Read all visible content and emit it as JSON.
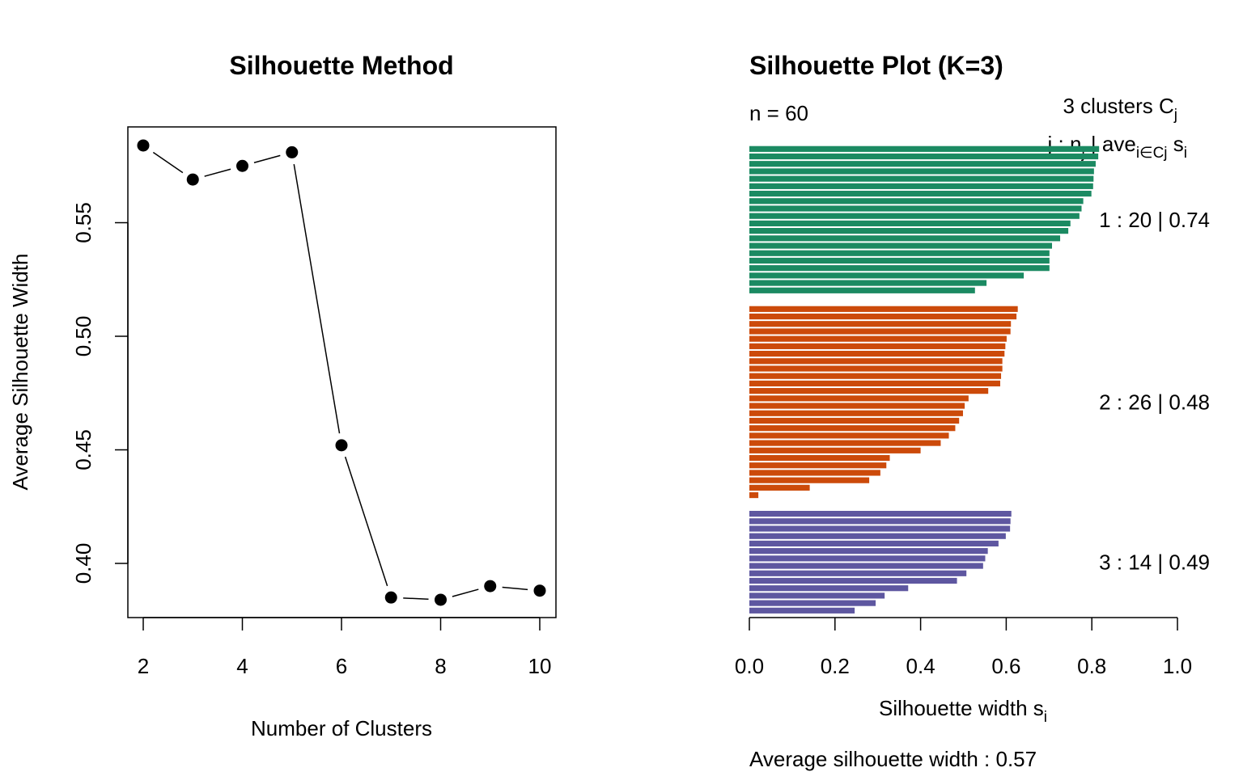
{
  "chart_data": [
    {
      "type": "line",
      "title": "Silhouette Method",
      "xlabel": "Number of Clusters",
      "ylabel": "Average Silhouette Width",
      "x": [
        2,
        3,
        4,
        5,
        6,
        7,
        8,
        9,
        10
      ],
      "values": [
        0.584,
        0.569,
        0.575,
        0.581,
        0.452,
        0.385,
        0.384,
        0.39,
        0.388
      ],
      "xticks": [
        "2",
        "4",
        "6",
        "8",
        "10"
      ],
      "yticks": [
        "0.40",
        "0.45",
        "0.50",
        "0.55"
      ],
      "xlim": [
        2,
        10
      ],
      "ylim": [
        0.384,
        0.584
      ],
      "markers": "filled-circle",
      "grid": false
    },
    {
      "type": "bar",
      "orientation": "horizontal",
      "title": "Silhouette Plot (K=3)",
      "n_label": "n = 60",
      "header_line1": {
        "text": "3  clusters  C",
        "sub": "j"
      },
      "header_line2": {
        "a": "j :  n",
        "a_sub": "j",
        "b": " | ave",
        "b_sub": "i∈Cj",
        "c": "  s",
        "c_sub": "i"
      },
      "xlabel": {
        "text": "Silhouette width s",
        "sub": "i"
      },
      "footer": "Average silhouette width :  0.57",
      "xticks": [
        "0.0",
        "0.2",
        "0.4",
        "0.6",
        "0.8",
        "1.0"
      ],
      "xlim": [
        0,
        1
      ],
      "clusters": [
        {
          "label": "1 :   20  |  0.74",
          "color": "#1B8A62",
          "values": [
            0.817,
            0.815,
            0.809,
            0.805,
            0.804,
            0.803,
            0.799,
            0.78,
            0.776,
            0.771,
            0.75,
            0.745,
            0.726,
            0.707,
            0.701,
            0.701,
            0.701,
            0.641,
            0.554,
            0.527
          ]
        },
        {
          "label": "2 :   26  |  0.48",
          "color": "#CC4A0A",
          "values": [
            0.627,
            0.624,
            0.611,
            0.61,
            0.601,
            0.598,
            0.596,
            0.591,
            0.591,
            0.588,
            0.586,
            0.558,
            0.512,
            0.503,
            0.499,
            0.49,
            0.481,
            0.466,
            0.447,
            0.4,
            0.328,
            0.32,
            0.306,
            0.28,
            0.141,
            0.021
          ]
        },
        {
          "label": "3 :   14  |  0.49",
          "color": "#5E57A0",
          "values": [
            0.612,
            0.61,
            0.609,
            0.599,
            0.582,
            0.557,
            0.551,
            0.546,
            0.507,
            0.485,
            0.371,
            0.316,
            0.295,
            0.246
          ]
        }
      ]
    }
  ]
}
